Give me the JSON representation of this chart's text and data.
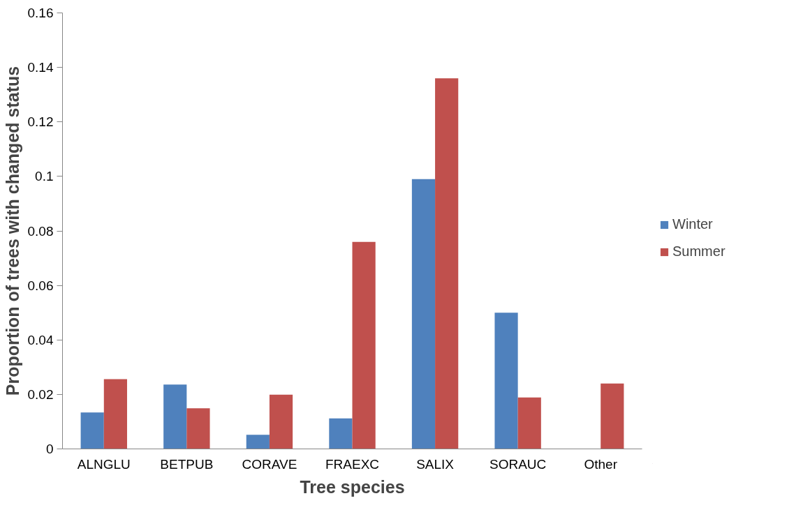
{
  "chart_data": {
    "type": "bar",
    "xlabel": "Tree species",
    "ylabel": "Proportion of trees with changed status",
    "categories": [
      "ALNGLU",
      "BETPUB",
      "CORAVE",
      "FRAEXC",
      "SALIX",
      "SORAUC",
      "Other"
    ],
    "series": [
      {
        "name": "Winter",
        "color": "#4f81bd",
        "values": [
          0.0134,
          0.0236,
          0.0052,
          0.0112,
          0.099,
          0.05,
          0
        ]
      },
      {
        "name": "Summer",
        "color": "#c0504d",
        "values": [
          0.0256,
          0.0149,
          0.0199,
          0.076,
          0.136,
          0.0189,
          0.024
        ]
      }
    ],
    "ylim": [
      0,
      0.16
    ],
    "yticks": [
      0,
      0.02,
      0.04,
      0.06,
      0.08,
      0.1,
      0.12,
      0.14,
      0.16
    ],
    "grid": false,
    "legend": "right"
  }
}
